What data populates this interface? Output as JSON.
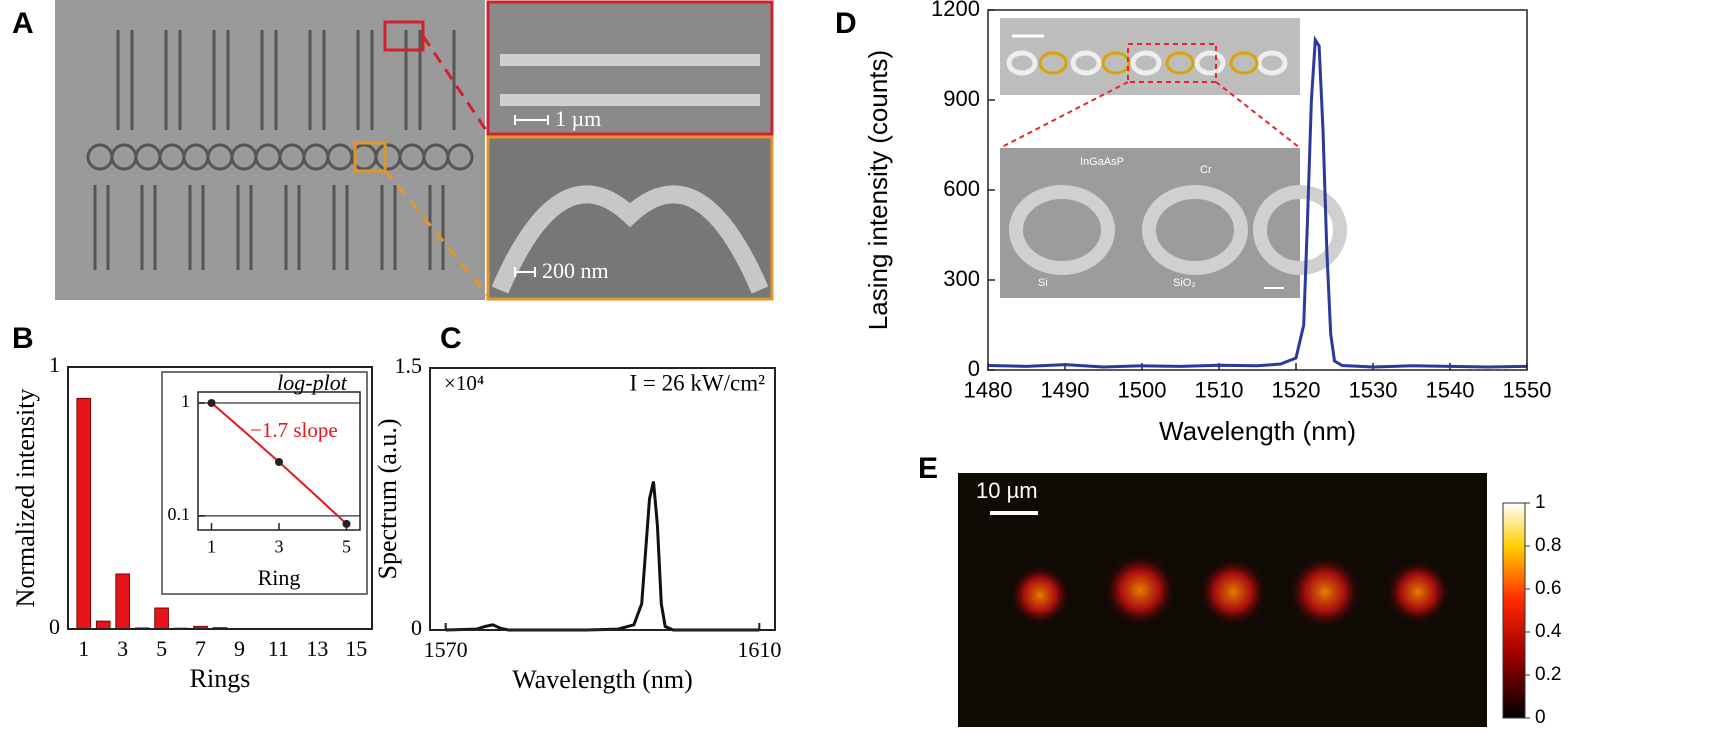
{
  "figure": {
    "panel_labels": [
      "A",
      "B",
      "C",
      "D",
      "E"
    ],
    "A": {
      "scale_bars": [
        "1 µm",
        "200 nm"
      ]
    },
    "D_inset": {
      "labels": [
        "InGaAsP",
        "Cr",
        "Si",
        "SiO₂"
      ]
    },
    "E": {
      "scale_bar": "10 µm",
      "colorbar_ticks": [
        0,
        0.2,
        0.4,
        0.6,
        0.8,
        1
      ]
    }
  },
  "chart_data": [
    {
      "type": "bar",
      "x_label": "Rings",
      "y_label": "Normalized intensity",
      "color": "#e8141c",
      "categories": [
        "1",
        null,
        "3",
        null,
        "5",
        null,
        "7",
        null,
        "9",
        null,
        "11",
        null,
        "13",
        null,
        "15"
      ],
      "values": [
        0.88,
        0.03,
        0.21,
        0.004,
        0.08,
        0.003,
        0.01,
        0.005,
        0,
        0,
        0,
        0,
        0,
        0,
        0
      ],
      "ylim": [
        0,
        1
      ],
      "yticks": [
        0,
        1
      ]
    },
    {
      "type": "line",
      "title": "log-plot",
      "annotation": "−1.7 slope",
      "x_label": "Ring",
      "log_y": true,
      "x": [
        1,
        2,
        3,
        4,
        5
      ],
      "series": [
        {
          "color": "#e8141c",
          "values": [
            1,
            0.55,
            0.3,
            0.16,
            0.085
          ]
        }
      ],
      "points_x": [
        1,
        3,
        5
      ],
      "points": [
        1,
        0.3,
        0.085
      ],
      "marker_color": "#222222",
      "xlim": [
        0.6,
        5.4
      ],
      "xticks": [
        1,
        3,
        5
      ],
      "ylim": [
        0.075,
        1.25
      ],
      "yticks": [
        0.1,
        1
      ],
      "grid": true
    },
    {
      "type": "line",
      "x_label": "Wavelength (nm)",
      "y_label": "Spectrum (a.u.)",
      "y_multiplier": "×10⁴",
      "annotation": "I = 26 kW/cm²",
      "x": [
        1570,
        1574,
        1575,
        1576,
        1577,
        1578,
        1582,
        1588,
        1592,
        1594,
        1595,
        1595.5,
        1596,
        1596.5,
        1597,
        1597.5,
        1598,
        1599,
        1602,
        1606,
        1610
      ],
      "series": [
        {
          "color": "#111111",
          "values": [
            0,
            0.005,
            0.02,
            0.03,
            0.01,
            0,
            0,
            0,
            0.005,
            0.03,
            0.15,
            0.45,
            0.75,
            0.85,
            0.6,
            0.15,
            0.02,
            0,
            0,
            0,
            0
          ]
        }
      ],
      "xlim": [
        1568,
        1612
      ],
      "xticks": [
        1570,
        1610
      ],
      "ylim": [
        0,
        1.5
      ],
      "yticks": [
        0,
        1.5
      ]
    },
    {
      "type": "line",
      "x_label": "Wavelength (nm)",
      "y_label": "Lasing intensity (counts)",
      "x": [
        1480,
        1485,
        1490,
        1495,
        1500,
        1505,
        1510,
        1515,
        1518,
        1520,
        1521,
        1521.5,
        1522,
        1522.5,
        1523,
        1523.5,
        1524,
        1524.5,
        1525,
        1526,
        1530,
        1535,
        1540,
        1545,
        1550
      ],
      "series": [
        {
          "color": "#2b3a9c",
          "values": [
            15,
            12,
            18,
            10,
            14,
            12,
            16,
            14,
            20,
            40,
            150,
            500,
            900,
            1100,
            1080,
            800,
            400,
            120,
            30,
            15,
            10,
            14,
            12,
            10,
            12
          ]
        }
      ],
      "xlim": [
        1480,
        1550
      ],
      "xticks": [
        1480,
        1490,
        1500,
        1510,
        1520,
        1530,
        1540,
        1550
      ],
      "ylim": [
        0,
        1200
      ],
      "yticks": [
        0,
        300,
        600,
        900,
        1200
      ]
    }
  ]
}
